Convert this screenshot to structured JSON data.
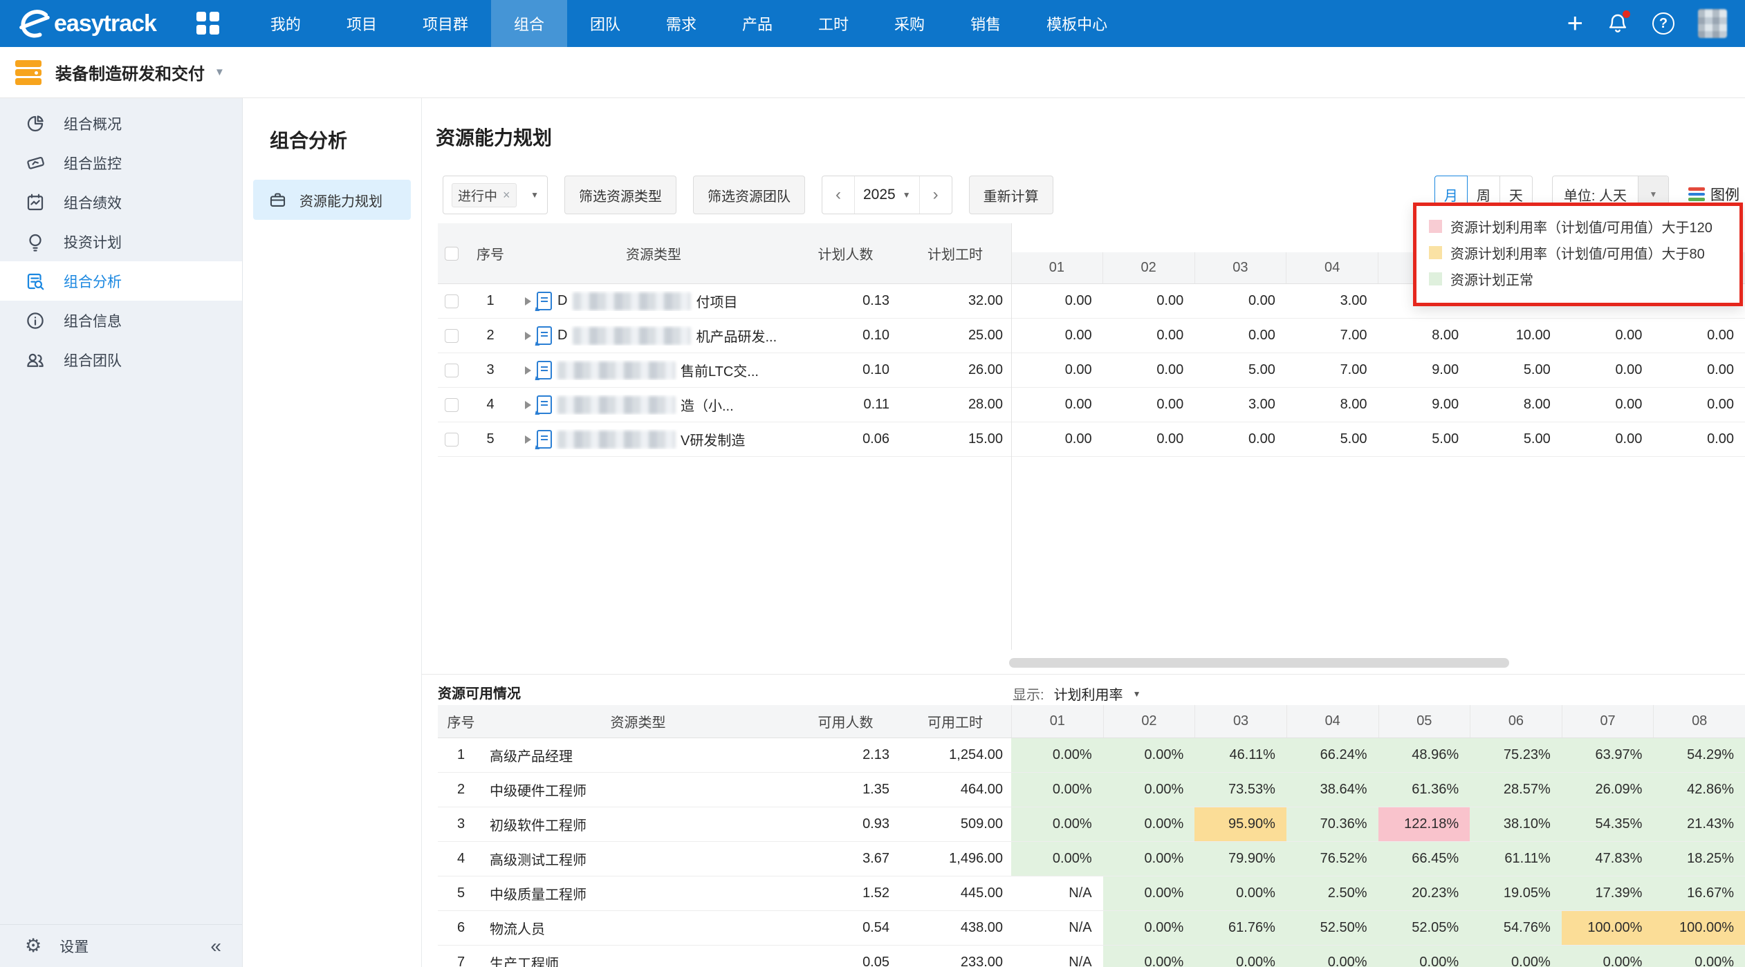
{
  "nav": {
    "brand": "easytrack",
    "active": "组合",
    "items": [
      "我的",
      "项目",
      "项目群",
      "组合",
      "团队",
      "需求",
      "产品",
      "工时",
      "采购",
      "销售",
      "模板中心"
    ]
  },
  "workspace": {
    "title": "装备制造研发和交付"
  },
  "sidebar": {
    "items": [
      {
        "label": "组合概况"
      },
      {
        "label": "组合监控"
      },
      {
        "label": "组合绩效"
      },
      {
        "label": "投资计划"
      },
      {
        "label": "组合分析",
        "active": true
      },
      {
        "label": "组合信息"
      },
      {
        "label": "组合团队"
      }
    ],
    "footer": {
      "settings": "设置"
    }
  },
  "subnav": {
    "heading": "组合分析",
    "items": [
      {
        "label": "资源能力规划",
        "active": true
      }
    ]
  },
  "page": {
    "title": "资源能力规划",
    "toolbar": {
      "status_tag": "进行中",
      "filter_type": "筛选资源类型",
      "filter_team": "筛选资源团队",
      "year": "2025",
      "recalc": "重新计算",
      "granularity": [
        "月",
        "周",
        "天"
      ],
      "granularity_active": "月",
      "unit_label": "单位: 人天",
      "legend_label": "图例"
    },
    "legend_popup": {
      "annotation_color": "#e5271d",
      "items": [
        {
          "color": "#f8ccd3",
          "label": "资源计划利用率（计划值/可用值）大于120"
        },
        {
          "color": "#fae2a4",
          "label": "资源计划利用率（计划值/可用值）大于80"
        },
        {
          "color": "#dff0dd",
          "label": "资源计划正常"
        }
      ]
    },
    "plan_table": {
      "columns": {
        "seq": "序号",
        "type": "资源类型",
        "planned_people": "计划人数",
        "planned_hours": "计划工时"
      },
      "months": [
        "01",
        "02",
        "03",
        "04",
        "05",
        "06",
        "07",
        "08"
      ],
      "rows": [
        {
          "seq": "1",
          "prefix": "D",
          "suffix": "付项目",
          "people": "0.13",
          "hours": "32.00",
          "months": [
            "0.00",
            "0.00",
            "0.00",
            "3.00",
            "",
            "",
            "",
            ""
          ]
        },
        {
          "seq": "2",
          "prefix": "D",
          "suffix": "机产品研发...",
          "people": "0.10",
          "hours": "25.00",
          "months": [
            "0.00",
            "0.00",
            "0.00",
            "7.00",
            "8.00",
            "10.00",
            "0.00",
            "0.00"
          ]
        },
        {
          "seq": "3",
          "prefix": "",
          "suffix": "售前LTC交...",
          "people": "0.10",
          "hours": "26.00",
          "months": [
            "0.00",
            "0.00",
            "5.00",
            "7.00",
            "9.00",
            "5.00",
            "0.00",
            "0.00"
          ]
        },
        {
          "seq": "4",
          "prefix": "",
          "suffix": "造（小...",
          "people": "0.11",
          "hours": "28.00",
          "months": [
            "0.00",
            "0.00",
            "3.00",
            "8.00",
            "9.00",
            "8.00",
            "0.00",
            "0.00"
          ]
        },
        {
          "seq": "5",
          "prefix": "",
          "suffix": "V研发制造",
          "people": "0.06",
          "hours": "15.00",
          "months": [
            "0.00",
            "0.00",
            "0.00",
            "5.00",
            "5.00",
            "5.00",
            "0.00",
            "0.00"
          ]
        }
      ]
    },
    "availability": {
      "title": "资源可用情况",
      "display_label": "显示:",
      "display_value": "计划利用率",
      "columns": {
        "seq": "序号",
        "type": "资源类型",
        "avail_people": "可用人数",
        "avail_hours": "可用工时"
      },
      "months": [
        "01",
        "02",
        "03",
        "04",
        "05",
        "06",
        "07",
        "08"
      ],
      "rows": [
        {
          "seq": "1",
          "type": "高级产品经理",
          "people": "2.13",
          "hours": "1,254.00",
          "cells": [
            {
              "v": "0.00%",
              "s": "g"
            },
            {
              "v": "0.00%",
              "s": "g"
            },
            {
              "v": "46.11%",
              "s": "g"
            },
            {
              "v": "66.24%",
              "s": "g"
            },
            {
              "v": "48.96%",
              "s": "g"
            },
            {
              "v": "75.23%",
              "s": "g"
            },
            {
              "v": "63.97%",
              "s": "g"
            },
            {
              "v": "54.29%",
              "s": "g"
            }
          ]
        },
        {
          "seq": "2",
          "type": "中级硬件工程师",
          "people": "1.35",
          "hours": "464.00",
          "cells": [
            {
              "v": "0.00%",
              "s": "g"
            },
            {
              "v": "0.00%",
              "s": "g"
            },
            {
              "v": "73.53%",
              "s": "g"
            },
            {
              "v": "38.64%",
              "s": "g"
            },
            {
              "v": "61.36%",
              "s": "g"
            },
            {
              "v": "28.57%",
              "s": "g"
            },
            {
              "v": "26.09%",
              "s": "g"
            },
            {
              "v": "42.86%",
              "s": "g"
            }
          ]
        },
        {
          "seq": "3",
          "type": "初级软件工程师",
          "people": "0.93",
          "hours": "509.00",
          "cells": [
            {
              "v": "0.00%",
              "s": "g"
            },
            {
              "v": "0.00%",
              "s": "g"
            },
            {
              "v": "95.90%",
              "s": "y"
            },
            {
              "v": "70.36%",
              "s": "g"
            },
            {
              "v": "122.18%",
              "s": "p"
            },
            {
              "v": "38.10%",
              "s": "g"
            },
            {
              "v": "54.35%",
              "s": "g"
            },
            {
              "v": "21.43%",
              "s": "g"
            }
          ]
        },
        {
          "seq": "4",
          "type": "高级测试工程师",
          "people": "3.67",
          "hours": "1,496.00",
          "cells": [
            {
              "v": "0.00%",
              "s": "g"
            },
            {
              "v": "0.00%",
              "s": "g"
            },
            {
              "v": "79.90%",
              "s": "g"
            },
            {
              "v": "76.52%",
              "s": "g"
            },
            {
              "v": "66.45%",
              "s": "g"
            },
            {
              "v": "61.11%",
              "s": "g"
            },
            {
              "v": "47.83%",
              "s": "g"
            },
            {
              "v": "18.25%",
              "s": "g"
            }
          ]
        },
        {
          "seq": "5",
          "type": "中级质量工程师",
          "people": "1.52",
          "hours": "445.00",
          "cells": [
            {
              "v": "N/A",
              "s": "n"
            },
            {
              "v": "0.00%",
              "s": "g"
            },
            {
              "v": "0.00%",
              "s": "g"
            },
            {
              "v": "2.50%",
              "s": "g"
            },
            {
              "v": "20.23%",
              "s": "g"
            },
            {
              "v": "19.05%",
              "s": "g"
            },
            {
              "v": "17.39%",
              "s": "g"
            },
            {
              "v": "16.67%",
              "s": "g"
            }
          ]
        },
        {
          "seq": "6",
          "type": "物流人员",
          "people": "0.54",
          "hours": "438.00",
          "cells": [
            {
              "v": "N/A",
              "s": "n"
            },
            {
              "v": "0.00%",
              "s": "g"
            },
            {
              "v": "61.76%",
              "s": "g"
            },
            {
              "v": "52.50%",
              "s": "g"
            },
            {
              "v": "52.05%",
              "s": "g"
            },
            {
              "v": "54.76%",
              "s": "g"
            },
            {
              "v": "100.00%",
              "s": "y"
            },
            {
              "v": "100.00%",
              "s": "y"
            }
          ]
        },
        {
          "seq": "7",
          "type": "生产工程师",
          "people": "0.05",
          "hours": "233.00",
          "cells": [
            {
              "v": "N/A",
              "s": "n"
            },
            {
              "v": "0.00%",
              "s": "g"
            },
            {
              "v": "0.00%",
              "s": "g"
            },
            {
              "v": "0.00%",
              "s": "g"
            },
            {
              "v": "0.00%",
              "s": "g"
            },
            {
              "v": "0.00%",
              "s": "g"
            },
            {
              "v": "0.00%",
              "s": "g"
            },
            {
              "v": "0.00%",
              "s": "g"
            }
          ]
        }
      ]
    }
  },
  "legend_icon_colors": [
    "#e34a3c",
    "#2c7fd8",
    "#5cb253"
  ]
}
